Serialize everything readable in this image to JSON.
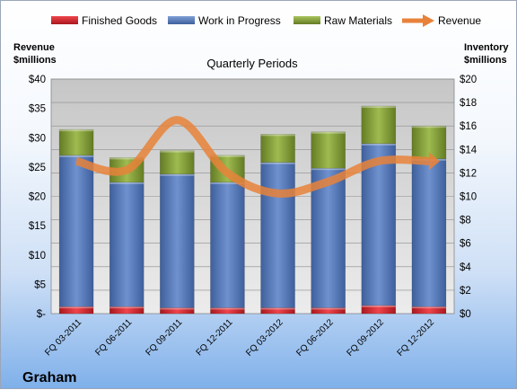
{
  "legend": {
    "finished_goods": "Finished Goods",
    "work_in_progress": "Work in Progress",
    "raw_materials": "Raw Materials",
    "revenue": "Revenue"
  },
  "left_axis_title": [
    "Revenue",
    "$millions"
  ],
  "right_axis_title": [
    "Inventory",
    "$millions"
  ],
  "plot_title": "Quarterly Periods",
  "company": "Graham",
  "colors": {
    "finished_goods": "#e8303a",
    "work_in_progress": "#5b7fbf",
    "raw_materials": "#8aa83e",
    "revenue": "#e8823a"
  },
  "chart_data": {
    "type": "bar",
    "stacked": true,
    "categories": [
      "FQ 03-2011",
      "FQ 06-2011",
      "FQ 09-2011",
      "FQ 12-2011",
      "FQ 03-2012",
      "FQ 06-2012",
      "FQ 09-2012",
      "FQ 12-2012"
    ],
    "series": [
      {
        "name": "Finished Goods",
        "axis": "right",
        "values": [
          0.6,
          0.6,
          0.5,
          0.5,
          0.5,
          0.5,
          0.7,
          0.6
        ]
      },
      {
        "name": "Work in Progress",
        "axis": "right",
        "values": [
          12.9,
          10.6,
          11.4,
          10.7,
          12.4,
          11.9,
          13.8,
          12.6
        ]
      },
      {
        "name": "Raw Materials",
        "axis": "right",
        "values": [
          2.2,
          2.1,
          2.0,
          2.3,
          2.4,
          3.1,
          3.2,
          2.8
        ]
      },
      {
        "name": "Revenue",
        "axis": "left",
        "type": "line",
        "values": [
          26.0,
          24.5,
          33.0,
          24.0,
          20.5,
          22.5,
          26.0,
          26.0
        ]
      }
    ],
    "left_axis": {
      "label": "Revenue $millions",
      "ylim": [
        0,
        40
      ],
      "ticks": [
        "$-",
        "$5",
        "$10",
        "$15",
        "$20",
        "$25",
        "$30",
        "$35",
        "$40"
      ]
    },
    "right_axis": {
      "label": "Inventory $millions",
      "ylim": [
        0,
        20
      ],
      "ticks": [
        "$0",
        "$2",
        "$4",
        "$6",
        "$8",
        "$10",
        "$12",
        "$14",
        "$16",
        "$18",
        "$20"
      ]
    },
    "title": "Quarterly Periods",
    "legend_position": "top",
    "grid": true
  }
}
